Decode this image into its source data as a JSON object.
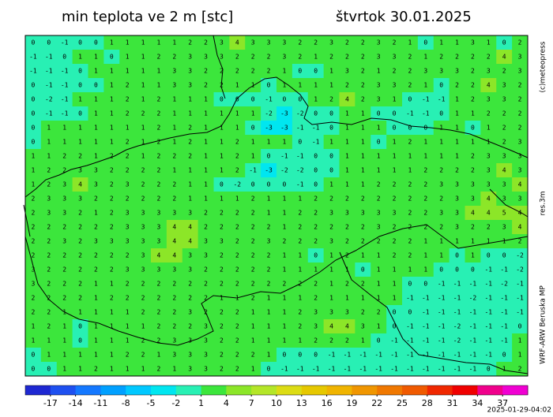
{
  "map": {
    "title": "min teplota ve 2 m [stc]",
    "date": "štvrtok 30.01.2025",
    "credit": "(c)meteopress",
    "resolution": "res.3m",
    "model": "WRF-ARW Beruska MP",
    "timestamp": "2025-01-29-04:02",
    "grid": [
      [
        0,
        0,
        -1,
        0,
        0,
        1,
        1,
        1,
        1,
        1,
        2,
        2,
        3,
        4,
        3,
        3,
        3,
        2,
        2,
        3,
        2,
        2,
        3,
        2,
        1,
        0,
        1,
        1,
        3,
        1,
        0,
        2
      ],
      [
        -1,
        -1,
        0,
        1,
        1,
        0,
        1,
        1,
        2,
        2,
        3,
        3,
        3,
        2,
        2,
        2,
        3,
        2,
        1,
        2,
        2,
        2,
        3,
        3,
        2,
        1,
        2,
        2,
        2,
        2,
        4,
        3
      ],
      [
        -1,
        -1,
        -1,
        0,
        1,
        1,
        1,
        1,
        1,
        3,
        3,
        2,
        2,
        2,
        2,
        2,
        1,
        0,
        0,
        1,
        3,
        2,
        1,
        2,
        2,
        3,
        3,
        3,
        2,
        3,
        2,
        3
      ],
      [
        0,
        -1,
        -1,
        0,
        0,
        1,
        2,
        1,
        1,
        3,
        3,
        2,
        2,
        1,
        1,
        0,
        1,
        1,
        1,
        1,
        2,
        2,
        3,
        3,
        2,
        1,
        0,
        2,
        2,
        4,
        3,
        2
      ],
      [
        0,
        -2,
        -1,
        1,
        1,
        1,
        2,
        1,
        2,
        1,
        1,
        1,
        0,
        0,
        0,
        -1,
        0,
        0,
        1,
        2,
        4,
        2,
        3,
        1,
        0,
        -1,
        -1,
        1,
        2,
        3,
        3,
        2
      ],
      [
        0,
        -1,
        -1,
        0,
        1,
        1,
        2,
        2,
        2,
        1,
        1,
        1,
        1,
        1,
        1,
        -2,
        -3,
        -2,
        0,
        0,
        1,
        1,
        0,
        0,
        -1,
        -1,
        0,
        1,
        1,
        2,
        2,
        2
      ],
      [
        0,
        1,
        1,
        1,
        1,
        1,
        1,
        1,
        2,
        1,
        2,
        1,
        1,
        1,
        0,
        -3,
        -3,
        -1,
        -1,
        0,
        1,
        1,
        1,
        0,
        0,
        0,
        1,
        1,
        0,
        1,
        2,
        2
      ],
      [
        0,
        1,
        1,
        1,
        1,
        1,
        2,
        1,
        2,
        1,
        2,
        1,
        1,
        2,
        1,
        1,
        1,
        0,
        -1,
        1,
        1,
        1,
        0,
        1,
        2,
        1,
        1,
        1,
        1,
        1,
        2,
        3
      ],
      [
        1,
        1,
        2,
        2,
        1,
        2,
        2,
        1,
        2,
        2,
        2,
        1,
        1,
        2,
        1,
        0,
        -1,
        -1,
        0,
        0,
        1,
        1,
        1,
        1,
        1,
        1,
        1,
        1,
        2,
        3,
        3,
        3
      ],
      [
        1,
        2,
        2,
        3,
        3,
        2,
        2,
        2,
        2,
        1,
        1,
        1,
        1,
        2,
        -1,
        -3,
        -2,
        -2,
        0,
        0,
        1,
        1,
        1,
        1,
        1,
        2,
        2,
        2,
        2,
        3,
        4,
        3
      ],
      [
        1,
        2,
        3,
        4,
        3,
        2,
        3,
        2,
        2,
        2,
        1,
        1,
        0,
        -2,
        0,
        0,
        0,
        -1,
        0,
        1,
        1,
        1,
        2,
        2,
        2,
        2,
        3,
        3,
        3,
        3,
        3,
        4
      ],
      [
        2,
        3,
        3,
        3,
        2,
        2,
        2,
        2,
        2,
        2,
        1,
        1,
        1,
        1,
        2,
        1,
        1,
        1,
        2,
        2,
        2,
        2,
        2,
        2,
        2,
        2,
        2,
        3,
        3,
        4,
        3,
        3
      ],
      [
        2,
        3,
        3,
        2,
        1,
        2,
        3,
        3,
        3,
        3,
        3,
        2,
        2,
        2,
        2,
        1,
        1,
        2,
        2,
        3,
        3,
        3,
        3,
        3,
        2,
        2,
        3,
        3,
        4,
        4,
        5,
        4
      ],
      [
        2,
        2,
        2,
        2,
        2,
        2,
        3,
        3,
        3,
        4,
        4,
        2,
        2,
        2,
        2,
        2,
        1,
        2,
        2,
        2,
        2,
        2,
        3,
        2,
        2,
        2,
        2,
        3,
        2,
        2,
        3,
        4
      ],
      [
        2,
        2,
        3,
        2,
        3,
        3,
        3,
        3,
        3,
        4,
        4,
        3,
        3,
        2,
        2,
        3,
        2,
        2,
        2,
        3,
        2,
        2,
        2,
        2,
        2,
        1,
        1,
        1,
        1,
        1,
        1,
        2
      ],
      [
        2,
        2,
        2,
        2,
        2,
        2,
        2,
        3,
        4,
        4,
        3,
        3,
        2,
        2,
        2,
        2,
        1,
        1,
        0,
        1,
        2,
        1,
        1,
        2,
        2,
        1,
        1,
        0,
        1,
        0,
        0,
        -2
      ],
      [
        3,
        2,
        2,
        2,
        2,
        2,
        3,
        3,
        3,
        3,
        3,
        2,
        2,
        2,
        2,
        2,
        1,
        1,
        1,
        1,
        1,
        0,
        1,
        1,
        1,
        1,
        0,
        0,
        0,
        -1,
        -1,
        -2
      ],
      [
        3,
        2,
        2,
        2,
        1,
        1,
        2,
        2,
        2,
        2,
        2,
        2,
        2,
        2,
        2,
        2,
        2,
        2,
        2,
        1,
        2,
        2,
        1,
        1,
        0,
        0,
        -1,
        -1,
        -1,
        -1,
        -2,
        -1
      ],
      [
        2,
        2,
        2,
        2,
        1,
        2,
        2,
        2,
        2,
        2,
        2,
        2,
        1,
        1,
        2,
        1,
        1,
        1,
        2,
        1,
        1,
        1,
        1,
        1,
        -1,
        -1,
        -1,
        -1,
        -2,
        -1,
        -1,
        -1
      ],
      [
        2,
        2,
        1,
        1,
        1,
        1,
        1,
        2,
        2,
        2,
        3,
        2,
        2,
        2,
        1,
        1,
        1,
        2,
        3,
        3,
        3,
        2,
        2,
        0,
        0,
        -1,
        -1,
        -1,
        -1,
        -1,
        -1,
        -1
      ],
      [
        1,
        2,
        1,
        0,
        1,
        1,
        1,
        1,
        2,
        2,
        2,
        3,
        2,
        2,
        1,
        1,
        1,
        2,
        3,
        4,
        4,
        3,
        1,
        0,
        -1,
        -1,
        -1,
        -2,
        -1,
        -1,
        -1,
        0
      ],
      [
        1,
        1,
        1,
        0,
        1,
        1,
        1,
        2,
        2,
        3,
        3,
        3,
        2,
        2,
        1,
        1,
        1,
        1,
        2,
        2,
        2,
        1,
        0,
        -1,
        -1,
        -1,
        -1,
        -2,
        -1,
        -1,
        -1,
        1
      ],
      [
        0,
        1,
        1,
        1,
        1,
        1,
        2,
        2,
        1,
        3,
        3,
        3,
        2,
        2,
        2,
        1,
        0,
        0,
        0,
        -1,
        -1,
        -1,
        -1,
        -1,
        -1,
        -1,
        -1,
        -1,
        -1,
        -1,
        0,
        1
      ],
      [
        0,
        0,
        1,
        1,
        2,
        1,
        1,
        1,
        2,
        1,
        3,
        3,
        2,
        2,
        1,
        0,
        -1,
        -1,
        -1,
        -1,
        -1,
        -1,
        -1,
        -1,
        -1,
        -1,
        -1,
        -1,
        -1,
        0,
        1,
        2
      ]
    ],
    "colorbar": {
      "lim": [
        -20,
        40
      ],
      "ticks": [
        -17,
        -14,
        -11,
        -8,
        -5,
        -2,
        1,
        4,
        7,
        10,
        13,
        16,
        19,
        22,
        25,
        28,
        31,
        34,
        37
      ],
      "colors": [
        "#1e28d2",
        "#1e50f0",
        "#1478ff",
        "#00a0ff",
        "#00c8ff",
        "#00e6f0",
        "#28f0b4",
        "#3ce63c",
        "#8ce628",
        "#b4e628",
        "#dcdc14",
        "#e6c800",
        "#f0b400",
        "#f09600",
        "#f07800",
        "#f05a00",
        "#f02800",
        "#f00000",
        "#f0008c",
        "#f000d2"
      ]
    }
  }
}
